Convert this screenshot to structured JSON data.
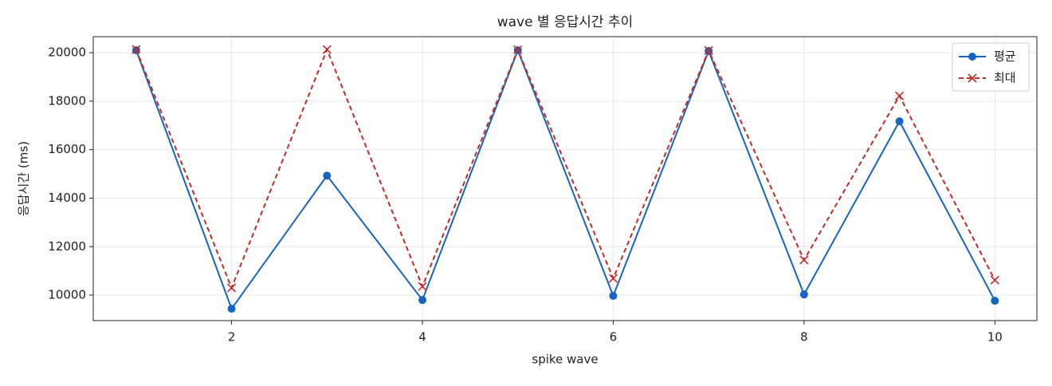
{
  "chart_data": {
    "type": "line",
    "title": "wave 별 응답시간 추이",
    "x_label": "spike wave",
    "y_label": "응답시간 (ms)",
    "x": [
      1,
      2,
      3,
      4,
      5,
      6,
      7,
      8,
      9,
      10
    ],
    "series": [
      {
        "name": "평균",
        "color": "#1565c0",
        "marker": "circle",
        "dash": false,
        "values": [
          20100,
          9440,
          14930,
          9800,
          20100,
          9970,
          20070,
          10030,
          17170,
          9770
        ]
      },
      {
        "name": "최대",
        "color": "#c62828",
        "marker": "x",
        "dash": true,
        "values": [
          20130,
          10300,
          20130,
          10360,
          20120,
          10690,
          20090,
          11450,
          18220,
          10620
        ]
      }
    ],
    "xlim": [
      0.55,
      10.44
    ],
    "xticks": [
      2,
      4,
      6,
      8,
      10
    ],
    "ylim": [
      8950,
      20660
    ],
    "yticks": [
      10000,
      12000,
      14000,
      16000,
      18000,
      20000
    ],
    "grid": true,
    "legend": "upper right"
  }
}
